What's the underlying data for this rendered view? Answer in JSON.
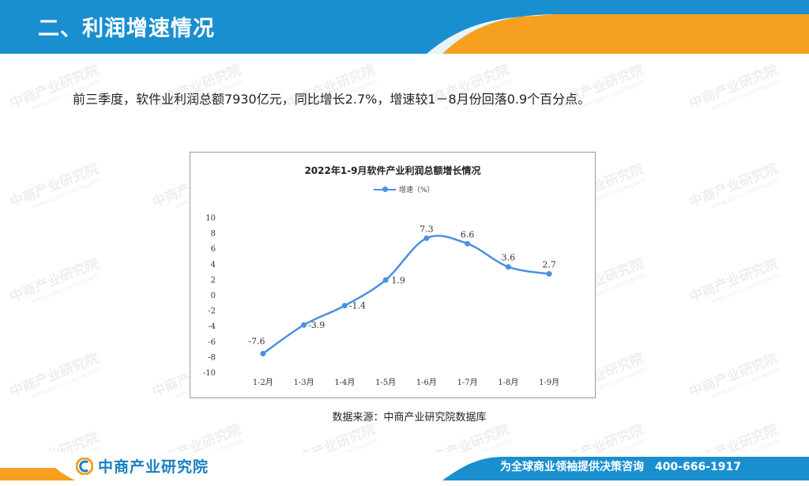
{
  "header": {
    "title": "二、利润增速情况",
    "band_color": "#1a8fd0",
    "accent_color": "#f6a020"
  },
  "summary": "前三季度，软件业利润总额7930亿元，同比增长2.7%，增速较1－8月份回落0.9个百分点。",
  "chart_data": {
    "type": "line",
    "title": "2022年1-9月软件产业利润总额增长情况",
    "categories": [
      "1-2月",
      "1-3月",
      "1-4月",
      "1-5月",
      "1-6月",
      "1-7月",
      "1-8月",
      "1-9月"
    ],
    "series": [
      {
        "name": "增速（%）",
        "values": [
          -7.6,
          -3.9,
          -1.4,
          1.9,
          7.3,
          6.6,
          3.6,
          2.7
        ],
        "color": "#4a90e2"
      }
    ],
    "data_labels": [
      "-7.6",
      "-3.9",
      "-1.4",
      "1.9",
      "7.3",
      "6.6",
      "3.6",
      "2.7"
    ],
    "yticks": [
      "10",
      "8",
      "6",
      "4",
      "2",
      "0",
      "-2",
      "-4",
      "-6",
      "-8",
      "-10"
    ],
    "ylim": [
      -10,
      10
    ],
    "legend": "top-center",
    "grid": false
  },
  "source": "数据来源：中商产业研究院数据库",
  "footer": {
    "logo_text": "中商产业研究院",
    "slogan": "为全球商业领袖提供决策咨询　400-666-1917",
    "logo_icon": "circle-c-icon"
  },
  "watermark": {
    "text": "中商产业研究院",
    "sub": "www.askci.com/reports"
  }
}
